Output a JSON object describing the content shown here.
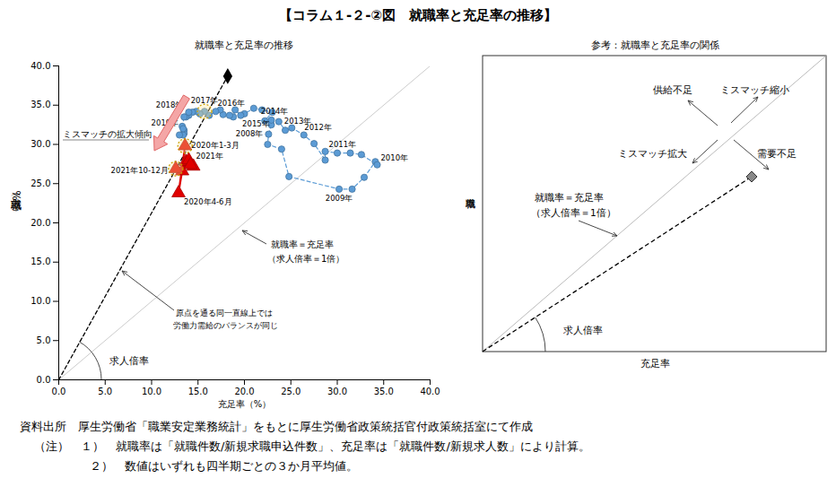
{
  "title": "【コラム１-２-②図　就職率と充足率の推移】",
  "chart_data": {
    "type": "scatter",
    "title": "就職率と充足率の推移",
    "x_label": "充足率（%）",
    "y_label": "就職率（%）",
    "xlim": [
      0,
      40
    ],
    "ylim": [
      0,
      40
    ],
    "xticks": [
      {
        "value": 0,
        "label": "0.0"
      },
      {
        "value": 5,
        "label": "5.0"
      },
      {
        "value": 10,
        "label": "10.0"
      },
      {
        "value": 15,
        "label": "15.0"
      },
      {
        "value": 20,
        "label": "20.0"
      },
      {
        "value": 25,
        "label": "25.0"
      },
      {
        "value": 30,
        "label": "30.0"
      },
      {
        "value": 35,
        "label": "35.0"
      },
      {
        "value": 40,
        "label": "40.0"
      }
    ],
    "yticks": [
      {
        "value": 0,
        "label": "0.0"
      },
      {
        "value": 5,
        "label": "5.0"
      },
      {
        "value": 10,
        "label": "10.0"
      },
      {
        "value": 15,
        "label": "15.0"
      },
      {
        "value": 20,
        "label": "20.0"
      },
      {
        "value": 25,
        "label": "25.0"
      },
      {
        "value": 30,
        "label": "30.0"
      },
      {
        "value": 35,
        "label": "35.0"
      },
      {
        "value": 40,
        "label": "40.0"
      }
    ],
    "grid": false,
    "series": [
      {
        "type": "line",
        "color": "#bfbfbf",
        "line_style": "solid",
        "x": [
          0,
          40
        ],
        "values": [
          0,
          40
        ]
      },
      {
        "type": "line",
        "color": "#000000",
        "line_style": "dashed",
        "marker": "diamond",
        "x": [
          0,
          18.2
        ],
        "values": [
          0,
          38.7
        ]
      },
      {
        "type": "scatter",
        "color": "#5b9bd5",
        "marker": "circle",
        "line_style": "dashed",
        "x": [
          22.9,
          22.6,
          22.5,
          24.0,
          24.8,
          30.2,
          31.6,
          32.9,
          34.1,
          34.3,
          32.6,
          31.4,
          30.0,
          28.7,
          28.7,
          27.5,
          26.4,
          25.1,
          24.4,
          23.7,
          22.9,
          22.2,
          23.0,
          21.9,
          21.0,
          20.0,
          19.6,
          19.0,
          18.8,
          18.4,
          17.7,
          17.4,
          16.9,
          16.2,
          15.7,
          15.2,
          14.8,
          14.4,
          14.0,
          13.7,
          14.0,
          13.5,
          13.3,
          13.5,
          13.5,
          13.4,
          13.0,
          13.4
        ],
        "values": [
          32.5,
          31.3,
          30.0,
          29.4,
          25.9,
          24.3,
          24.3,
          25.8,
          27.8,
          27.4,
          28.7,
          28.9,
          28.9,
          29.1,
          28.0,
          30.1,
          31.2,
          32.1,
          31.8,
          32.9,
          33.1,
          33.0,
          34.1,
          34.4,
          34.6,
          33.9,
          33.7,
          34.4,
          33.5,
          33.7,
          33.8,
          34.4,
          34.2,
          33.7,
          34.2,
          33.9,
          34.2,
          34.1,
          33.7,
          33.5,
          34.1,
          33.5,
          32.3,
          31.8,
          31.4,
          31.2,
          31.2,
          32.0
        ],
        "labels": [
          null,
          "2008年",
          null,
          null,
          null,
          "2009年",
          null,
          null,
          "2010年",
          null,
          null,
          null,
          null,
          "2011年",
          null,
          null,
          null,
          "2012年",
          null,
          "2013年",
          null,
          null,
          null,
          null,
          "2014年",
          null,
          null,
          null,
          "2015年",
          null,
          null,
          null,
          "2016年",
          null,
          "2017年",
          null,
          null,
          null,
          null,
          null,
          "2018年",
          null,
          null,
          "2019年",
          null,
          null,
          null,
          null
        ]
      },
      {
        "type": "scatter",
        "color": "#e00000",
        "marker": "triangle",
        "line_style": "solid",
        "x": [
          13.6,
          12.9,
          13.3,
          13.7,
          14.0,
          14.5,
          14.2,
          12.6
        ],
        "values": [
          29.8,
          23.8,
          26.6,
          27.8,
          28.0,
          27.2,
          27.4,
          26.9
        ],
        "labels": [
          "2020年1-3月",
          "2020年4-6月",
          null,
          null,
          "2021年",
          null,
          null,
          "2021年10-12月"
        ]
      }
    ],
    "highlighted_labels": [
      "2017年",
      "2020年1-3月",
      "2021年10-12月"
    ],
    "annotations": [
      "ミスマッチの拡大傾向",
      "就職率＝充足率",
      "（求人倍率＝1倍）",
      "原点を通る同一直線上では",
      "労働力需給のバランスが同じ",
      "求人倍率"
    ]
  },
  "reference_panel": {
    "title": "参考：就職率と充足率の関係",
    "x_label": "充足率",
    "y_label": "就職率",
    "annotations": [
      "供給不足",
      "ミスマッチ縮小",
      "ミスマッチ拡大",
      "需要不足",
      "就職率＝充足率",
      "（求人倍率＝1倍）",
      "求人倍率"
    ]
  },
  "notes": [
    "資料出所　厚生労働省「職業安定業務統計」をもとに厚生労働省政策統括官付政策統括室にて作成",
    "（注）　１）　就職率は「就職件数/新規求職申込件数」、充足率は「就職件数/新規求人数」により計算。",
    "２）　数値はいずれも四半期ごとの３か月平均値。"
  ]
}
